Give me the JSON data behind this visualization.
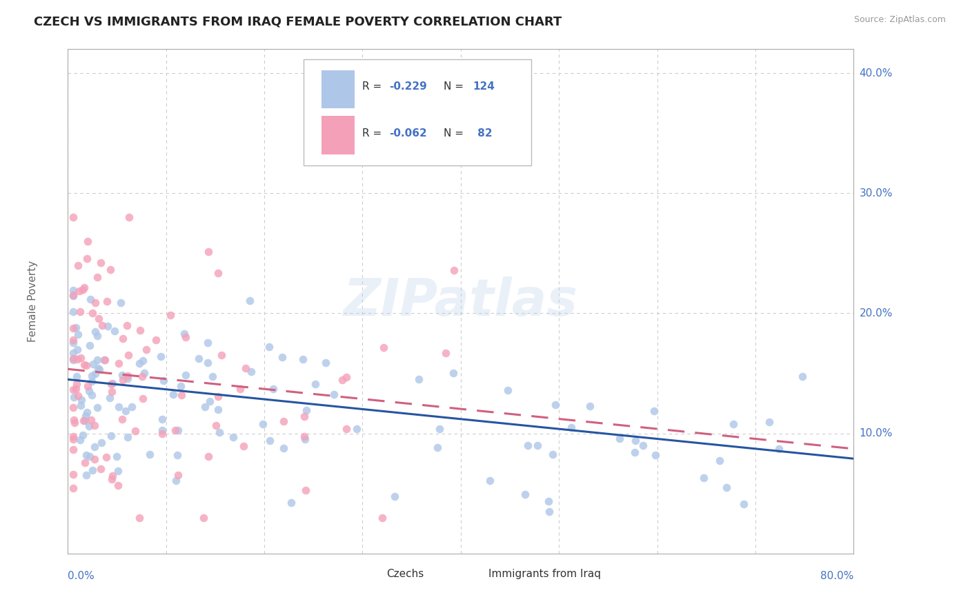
{
  "title": "CZECH VS IMMIGRANTS FROM IRAQ FEMALE POVERTY CORRELATION CHART",
  "source": "Source: ZipAtlas.com",
  "ylabel": "Female Poverty",
  "xlim": [
    0.0,
    0.8
  ],
  "ylim": [
    0.0,
    0.42
  ],
  "xticks": [
    0.0,
    0.1,
    0.2,
    0.3,
    0.4,
    0.5,
    0.6,
    0.7,
    0.8
  ],
  "ytick_positions": [
    0.1,
    0.2,
    0.3,
    0.4
  ],
  "yticklabels": [
    "10.0%",
    "20.0%",
    "30.0%",
    "40.0%"
  ],
  "watermark": "ZIPatlas",
  "czech_color": "#aec6e8",
  "iraq_color": "#f4a0b8",
  "czech_line_color": "#2655a0",
  "iraq_line_color": "#d06080",
  "background_color": "#ffffff",
  "grid_color": "#cccccc",
  "title_color": "#222222",
  "axis_label_color": "#4472c4",
  "R_value_czech": -0.229,
  "R_value_iraq": -0.062,
  "N_czech": 124,
  "N_iraq": 82
}
